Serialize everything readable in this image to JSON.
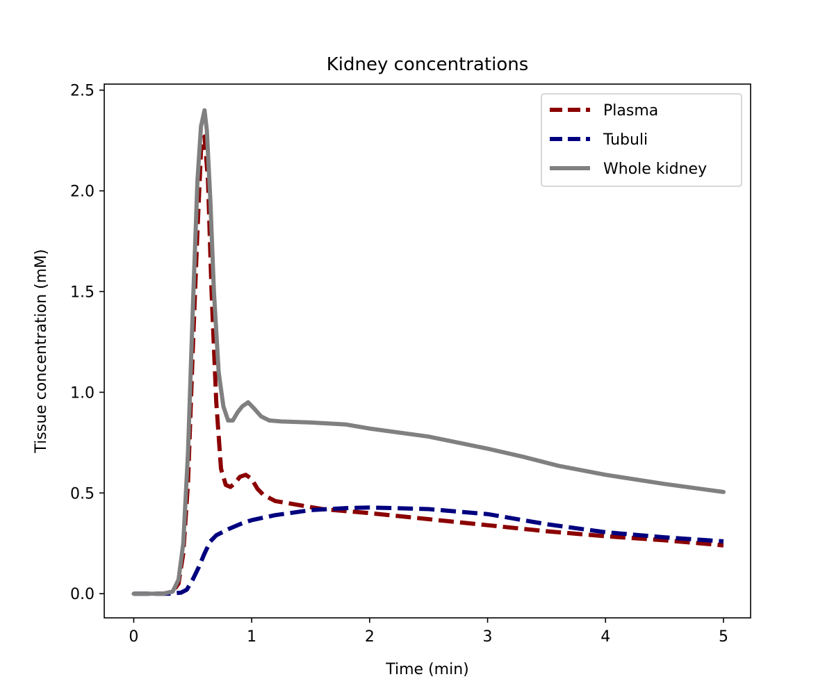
{
  "chart_data": {
    "type": "line",
    "title": "Kidney concentrations",
    "xlabel": "Time (min)",
    "ylabel": "Tissue concentration (mM)",
    "xlim": [
      -0.25,
      5.23
    ],
    "ylim": [
      -0.12,
      2.53
    ],
    "xticks": [
      0,
      1,
      2,
      3,
      4,
      5
    ],
    "xtick_labels": [
      "0",
      "1",
      "2",
      "3",
      "4",
      "5"
    ],
    "yticks": [
      0,
      0.5,
      1,
      1.5,
      2,
      2.5
    ],
    "ytick_labels": [
      "0.0",
      "0.5",
      "1.0",
      "1.5",
      "2.0",
      "2.5"
    ],
    "grid": false,
    "legend_position": "top-right",
    "series": [
      {
        "name": "Plasma",
        "color": "#8b0000",
        "style": "dashed",
        "x": [
          0,
          0.25,
          0.33,
          0.38,
          0.42,
          0.46,
          0.5,
          0.54,
          0.57,
          0.6,
          0.63,
          0.66,
          0.7,
          0.74,
          0.78,
          0.82,
          0.86,
          0.9,
          0.95,
          1.0,
          1.05,
          1.1,
          1.2,
          1.4,
          1.6,
          2.0,
          2.5,
          3.0,
          3.5,
          4.0,
          4.5,
          5.0
        ],
        "y": [
          0,
          0,
          0.01,
          0.05,
          0.2,
          0.55,
          1.2,
          1.8,
          2.2,
          2.27,
          2.05,
          1.5,
          0.95,
          0.62,
          0.54,
          0.53,
          0.55,
          0.58,
          0.59,
          0.57,
          0.52,
          0.49,
          0.46,
          0.44,
          0.42,
          0.4,
          0.37,
          0.34,
          0.31,
          0.285,
          0.265,
          0.24
        ]
      },
      {
        "name": "Tubuli",
        "color": "#00007f",
        "style": "dashed",
        "x": [
          0,
          0.3,
          0.4,
          0.45,
          0.5,
          0.55,
          0.6,
          0.65,
          0.7,
          0.8,
          0.9,
          1.0,
          1.2,
          1.5,
          1.8,
          2.0,
          2.5,
          3.0,
          3.5,
          4.0,
          4.5,
          5.0
        ],
        "y": [
          0,
          0,
          0.005,
          0.02,
          0.07,
          0.13,
          0.2,
          0.26,
          0.29,
          0.32,
          0.345,
          0.365,
          0.39,
          0.415,
          0.425,
          0.428,
          0.42,
          0.395,
          0.345,
          0.305,
          0.28,
          0.26
        ]
      },
      {
        "name": "Whole kidney",
        "color": "#808080",
        "style": "solid",
        "x": [
          0,
          0.25,
          0.33,
          0.38,
          0.42,
          0.46,
          0.5,
          0.54,
          0.57,
          0.6,
          0.62,
          0.65,
          0.68,
          0.72,
          0.76,
          0.8,
          0.84,
          0.88,
          0.92,
          0.97,
          1.02,
          1.08,
          1.15,
          1.25,
          1.5,
          1.8,
          2.0,
          2.5,
          3.0,
          3.3,
          3.6,
          4.0,
          4.5,
          5.0
        ],
        "y": [
          0,
          0,
          0.01,
          0.07,
          0.25,
          0.7,
          1.4,
          2.05,
          2.32,
          2.4,
          2.3,
          1.95,
          1.5,
          1.1,
          0.93,
          0.86,
          0.86,
          0.9,
          0.93,
          0.95,
          0.92,
          0.88,
          0.86,
          0.855,
          0.85,
          0.84,
          0.82,
          0.78,
          0.72,
          0.68,
          0.635,
          0.59,
          0.545,
          0.505
        ]
      }
    ]
  }
}
